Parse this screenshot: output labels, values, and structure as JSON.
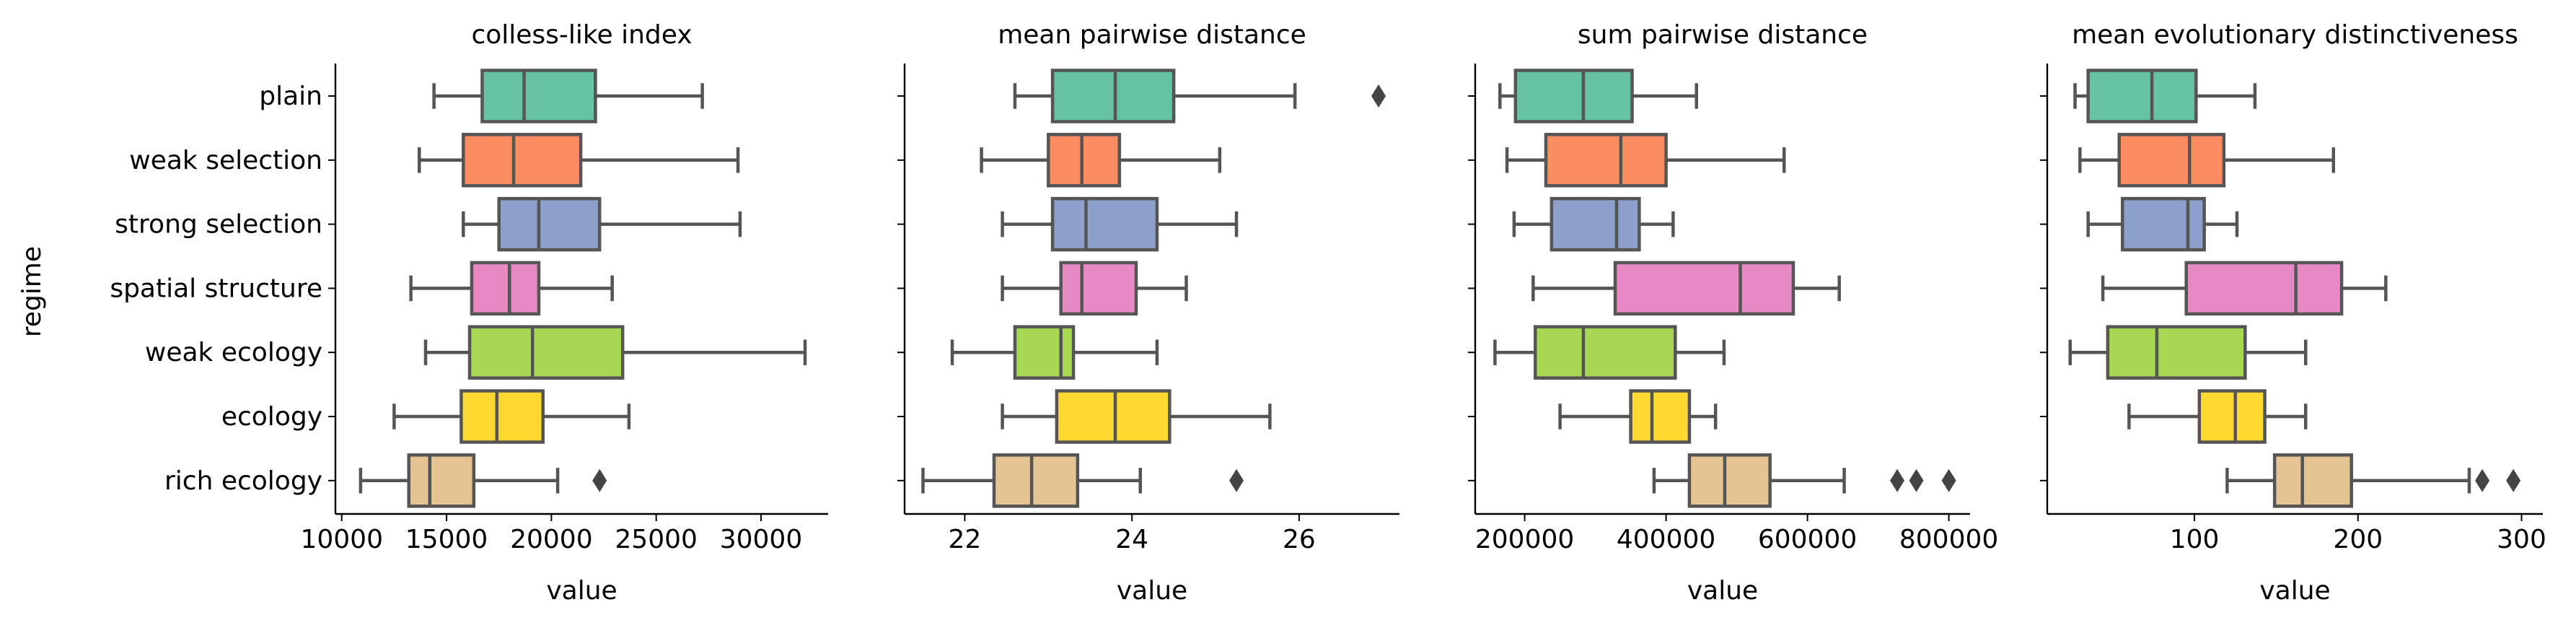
{
  "figure": {
    "ylabel": "regime",
    "categories": [
      "plain",
      "weak selection",
      "strong selection",
      "spatial structure",
      "weak ecology",
      "ecology",
      "rich ecology"
    ],
    "colors": [
      "#66c2a5",
      "#fc8d62",
      "#8da0cb",
      "#e78ac3",
      "#a6d854",
      "#ffd92f",
      "#e5c494"
    ],
    "edge_color": "#555555"
  },
  "chart_data": [
    {
      "type": "box",
      "orientation": "horizontal",
      "title": "colless-like index",
      "xlabel": "value",
      "xlim": [
        9700,
        33200
      ],
      "xticks": [
        10000,
        15000,
        20000,
        25000,
        30000
      ],
      "xtick_labels": [
        "10000",
        "15000",
        "20000",
        "25000",
        "30000"
      ],
      "boxes": [
        {
          "category": "plain",
          "whisker_low": 14400,
          "q1": 16700,
          "median": 18700,
          "q3": 22100,
          "whisker_high": 27200,
          "outliers": []
        },
        {
          "category": "weak selection",
          "whisker_low": 13700,
          "q1": 15800,
          "median": 18200,
          "q3": 21400,
          "whisker_high": 28900,
          "outliers": []
        },
        {
          "category": "strong selection",
          "whisker_low": 15800,
          "q1": 17500,
          "median": 19400,
          "q3": 22300,
          "whisker_high": 29000,
          "outliers": []
        },
        {
          "category": "spatial structure",
          "whisker_low": 13300,
          "q1": 16200,
          "median": 18000,
          "q3": 19400,
          "whisker_high": 22900,
          "outliers": []
        },
        {
          "category": "weak ecology",
          "whisker_low": 14000,
          "q1": 16100,
          "median": 19100,
          "q3": 23400,
          "whisker_high": 32100,
          "outliers": []
        },
        {
          "category": "ecology",
          "whisker_low": 12500,
          "q1": 15700,
          "median": 17400,
          "q3": 19600,
          "whisker_high": 23700,
          "outliers": []
        },
        {
          "category": "rich ecology",
          "whisker_low": 10900,
          "q1": 13200,
          "median": 14200,
          "q3": 16300,
          "whisker_high": 20300,
          "outliers": [
            22300
          ]
        }
      ]
    },
    {
      "type": "box",
      "orientation": "horizontal",
      "title": "mean pairwise distance",
      "xlabel": "value",
      "xlim": [
        21.28,
        27.2
      ],
      "xticks": [
        22,
        24,
        26
      ],
      "xtick_labels": [
        "22",
        "24",
        "26"
      ],
      "boxes": [
        {
          "category": "plain",
          "whisker_low": 22.6,
          "q1": 23.05,
          "median": 23.8,
          "q3": 24.5,
          "whisker_high": 25.95,
          "outliers": [
            26.95
          ]
        },
        {
          "category": "weak selection",
          "whisker_low": 22.2,
          "q1": 23.0,
          "median": 23.4,
          "q3": 23.85,
          "whisker_high": 25.05,
          "outliers": []
        },
        {
          "category": "strong selection",
          "whisker_low": 22.45,
          "q1": 23.05,
          "median": 23.45,
          "q3": 24.3,
          "whisker_high": 25.25,
          "outliers": []
        },
        {
          "category": "spatial structure",
          "whisker_low": 22.45,
          "q1": 23.15,
          "median": 23.4,
          "q3": 24.05,
          "whisker_high": 24.65,
          "outliers": []
        },
        {
          "category": "weak ecology",
          "whisker_low": 21.85,
          "q1": 22.6,
          "median": 23.15,
          "q3": 23.3,
          "whisker_high": 24.3,
          "outliers": []
        },
        {
          "category": "ecology",
          "whisker_low": 22.45,
          "q1": 23.1,
          "median": 23.8,
          "q3": 24.45,
          "whisker_high": 25.65,
          "outliers": []
        },
        {
          "category": "rich ecology",
          "whisker_low": 21.5,
          "q1": 22.35,
          "median": 22.8,
          "q3": 23.35,
          "whisker_high": 24.1,
          "outliers": [
            25.25
          ]
        }
      ]
    },
    {
      "type": "box",
      "orientation": "horizontal",
      "title": "sum pairwise distance",
      "xlabel": "value",
      "xlim": [
        130000,
        830000
      ],
      "xticks": [
        200000,
        400000,
        600000,
        800000
      ],
      "xtick_labels": [
        "200000",
        "400000",
        "600000",
        "800000"
      ],
      "boxes": [
        {
          "category": "plain",
          "whisker_low": 165000,
          "q1": 187000,
          "median": 283000,
          "q3": 352000,
          "whisker_high": 443000,
          "outliers": []
        },
        {
          "category": "weak selection",
          "whisker_low": 175000,
          "q1": 230000,
          "median": 336000,
          "q3": 400000,
          "whisker_high": 567000,
          "outliers": []
        },
        {
          "category": "strong selection",
          "whisker_low": 185000,
          "q1": 238000,
          "median": 330000,
          "q3": 362000,
          "whisker_high": 410000,
          "outliers": []
        },
        {
          "category": "spatial structure",
          "whisker_low": 212000,
          "q1": 328000,
          "median": 505000,
          "q3": 580000,
          "whisker_high": 645000,
          "outliers": []
        },
        {
          "category": "weak ecology",
          "whisker_low": 158000,
          "q1": 215000,
          "median": 283000,
          "q3": 413000,
          "whisker_high": 482000,
          "outliers": []
        },
        {
          "category": "ecology",
          "whisker_low": 250000,
          "q1": 350000,
          "median": 380000,
          "q3": 433000,
          "whisker_high": 470000,
          "outliers": []
        },
        {
          "category": "rich ecology",
          "whisker_low": 383000,
          "q1": 433000,
          "median": 483000,
          "q3": 547000,
          "whisker_high": 652000,
          "outliers": [
            727000,
            754000,
            800000
          ]
        }
      ]
    },
    {
      "type": "box",
      "orientation": "horizontal",
      "title": "mean evolutionary distinctiveness",
      "xlabel": "value",
      "xlim": [
        10,
        313
      ],
      "xticks": [
        100,
        200,
        300
      ],
      "xtick_labels": [
        "100",
        "200",
        "300"
      ],
      "boxes": [
        {
          "category": "plain",
          "whisker_low": 27,
          "q1": 35,
          "median": 74,
          "q3": 101,
          "whisker_high": 137,
          "outliers": []
        },
        {
          "category": "weak selection",
          "whisker_low": 30,
          "q1": 54,
          "median": 97,
          "q3": 118,
          "whisker_high": 185,
          "outliers": []
        },
        {
          "category": "strong selection",
          "whisker_low": 35,
          "q1": 56,
          "median": 96,
          "q3": 106,
          "whisker_high": 126,
          "outliers": []
        },
        {
          "category": "spatial structure",
          "whisker_low": 44,
          "q1": 95,
          "median": 162,
          "q3": 190,
          "whisker_high": 217,
          "outliers": []
        },
        {
          "category": "weak ecology",
          "whisker_low": 24,
          "q1": 47,
          "median": 77,
          "q3": 131,
          "whisker_high": 168,
          "outliers": []
        },
        {
          "category": "ecology",
          "whisker_low": 60,
          "q1": 103,
          "median": 125,
          "q3": 143,
          "whisker_high": 168,
          "outliers": []
        },
        {
          "category": "rich ecology",
          "whisker_low": 120,
          "q1": 149,
          "median": 166,
          "q3": 196,
          "whisker_high": 268,
          "outliers": [
            276,
            295
          ]
        }
      ]
    }
  ]
}
